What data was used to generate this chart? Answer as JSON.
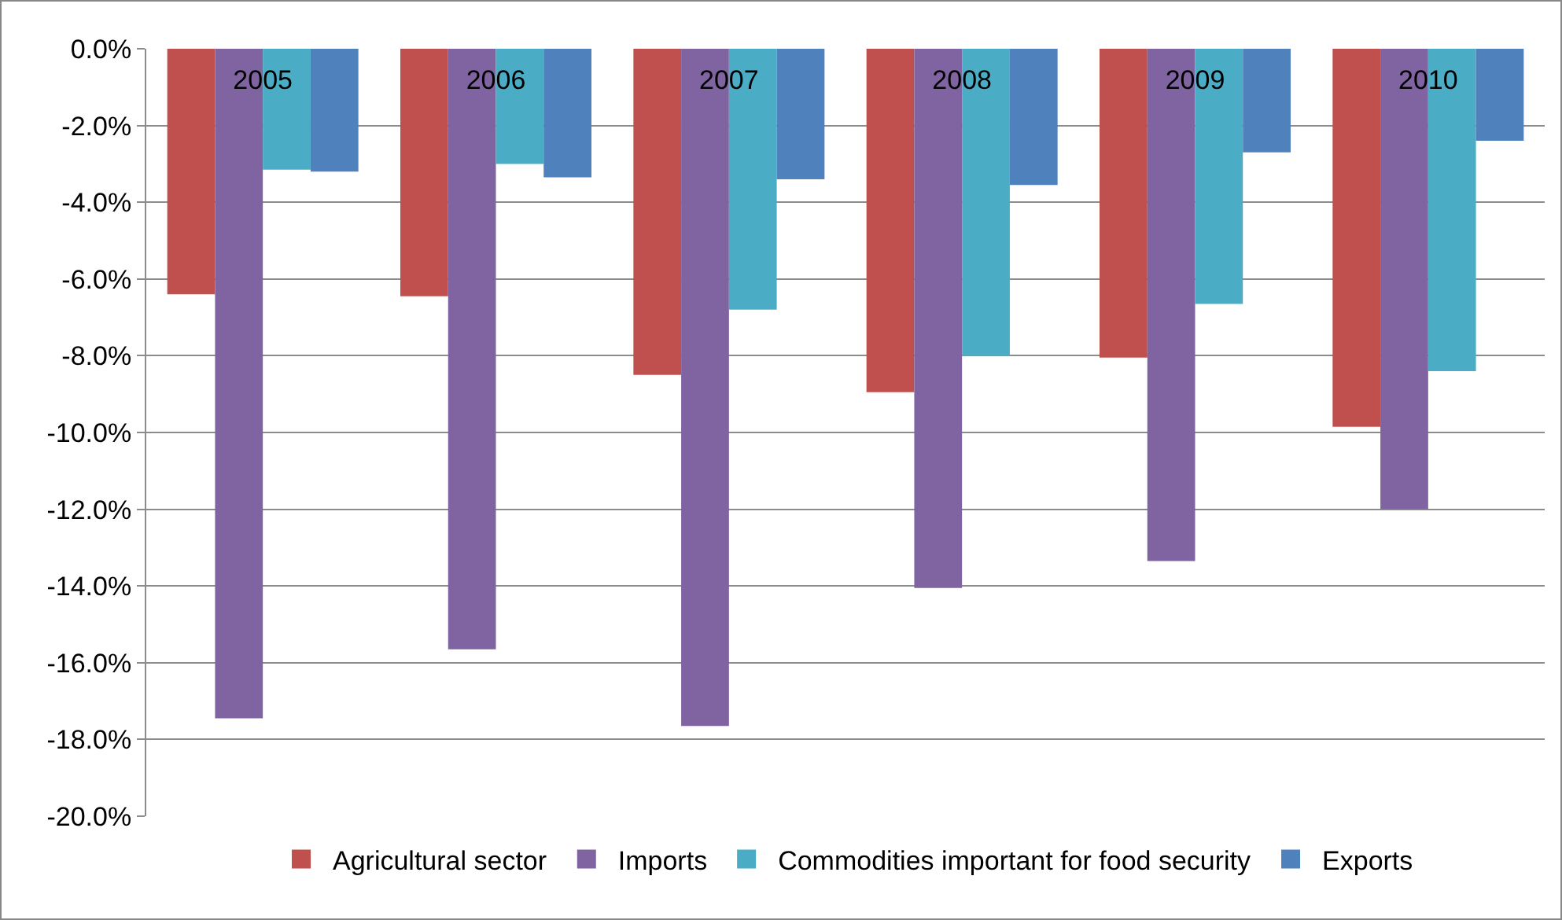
{
  "chart_data": {
    "type": "bar",
    "categories": [
      "2005",
      "2006",
      "2007",
      "2008",
      "2009",
      "2010"
    ],
    "series": [
      {
        "name": "Agricultural sector",
        "color": "#c0504d",
        "values": [
          -6.4,
          -6.45,
          -8.5,
          -8.95,
          -8.05,
          -9.85
        ]
      },
      {
        "name": "Imports",
        "color": "#8064a2",
        "values": [
          -17.45,
          -15.65,
          -17.65,
          -14.05,
          -13.35,
          -12.0
        ]
      },
      {
        "name": "Commodities important for food security",
        "color": "#4bacc6",
        "values": [
          -3.15,
          -3.0,
          -6.8,
          -8.0,
          -6.65,
          -8.4
        ]
      },
      {
        "name": "Exports",
        "color": "#4f81bd",
        "values": [
          -3.2,
          -3.35,
          -3.4,
          -3.55,
          -2.7,
          -2.4
        ]
      }
    ],
    "ylim": [
      -20,
      0
    ],
    "yticks": [
      {
        "value": 0,
        "label": "0.0%"
      },
      {
        "value": -2,
        "label": "-2.0%"
      },
      {
        "value": -4,
        "label": "-4.0%"
      },
      {
        "value": -6,
        "label": "-6.0%"
      },
      {
        "value": -8,
        "label": "-8.0%"
      },
      {
        "value": -10,
        "label": "-10.0%"
      },
      {
        "value": -12,
        "label": "-12.0%"
      },
      {
        "value": -14,
        "label": "-14.0%"
      },
      {
        "value": -16,
        "label": "-16.0%"
      },
      {
        "value": -18,
        "label": "-18.0%"
      },
      {
        "value": -20,
        "label": "-20.0%"
      }
    ],
    "grid": "y",
    "legend": "bottom"
  }
}
